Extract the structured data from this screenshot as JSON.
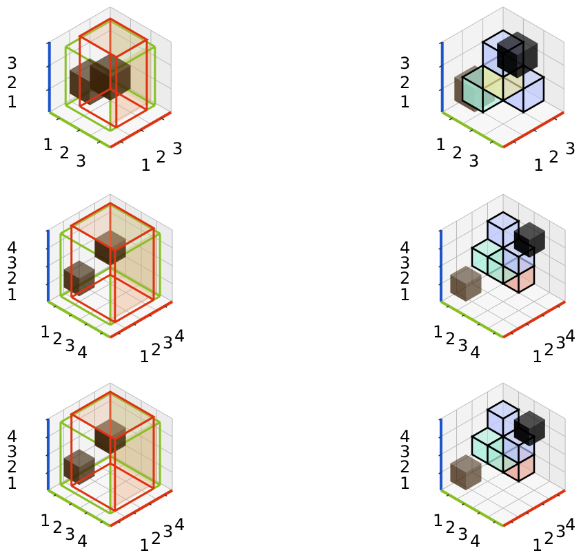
{
  "panels": [
    {
      "id": "p1",
      "kind": "frames",
      "n": 3,
      "z_labels": [
        "3",
        "2",
        "1"
      ],
      "left_labels": [
        "1",
        "2",
        "3"
      ],
      "right_labels": [
        "1",
        "2",
        "3"
      ]
    },
    {
      "id": "p2",
      "kind": "blocks",
      "n": 3,
      "z_labels": [
        "3",
        "2",
        "1"
      ],
      "left_labels": [
        "1",
        "2",
        "3"
      ],
      "right_labels": [
        "1",
        "2",
        "3"
      ]
    },
    {
      "id": "p3",
      "kind": "frames",
      "n": 4,
      "z_labels": [
        "4",
        "3",
        "2",
        "1"
      ],
      "left_labels": [
        "1",
        "2",
        "3",
        "4"
      ],
      "right_labels": [
        "1",
        "2",
        "3",
        "4"
      ]
    },
    {
      "id": "p4",
      "kind": "blocks",
      "n": 4,
      "z_labels": [
        "4",
        "3",
        "2",
        "1"
      ],
      "left_labels": [
        "1",
        "2",
        "3",
        "4"
      ],
      "right_labels": [
        "1",
        "2",
        "3",
        "4"
      ]
    },
    {
      "id": "p5",
      "kind": "frames",
      "n": 4,
      "z_labels": [
        "4",
        "3",
        "2",
        "1"
      ],
      "left_labels": [
        "1",
        "2",
        "3",
        "4"
      ],
      "right_labels": [
        "1",
        "2",
        "3",
        "4"
      ]
    },
    {
      "id": "p6",
      "kind": "blocks",
      "n": 4,
      "z_labels": [
        "4",
        "3",
        "2",
        "1"
      ],
      "left_labels": [
        "1",
        "2",
        "3",
        "4"
      ],
      "right_labels": [
        "1",
        "2",
        "3",
        "4"
      ]
    }
  ],
  "colors": {
    "x_axis": "#dd3311",
    "y_axis": "#88c022",
    "z_axis": "#1b55cc",
    "pane": "#ececec",
    "grid": "#b9b9b9",
    "dark_cube": "#3a2208"
  }
}
